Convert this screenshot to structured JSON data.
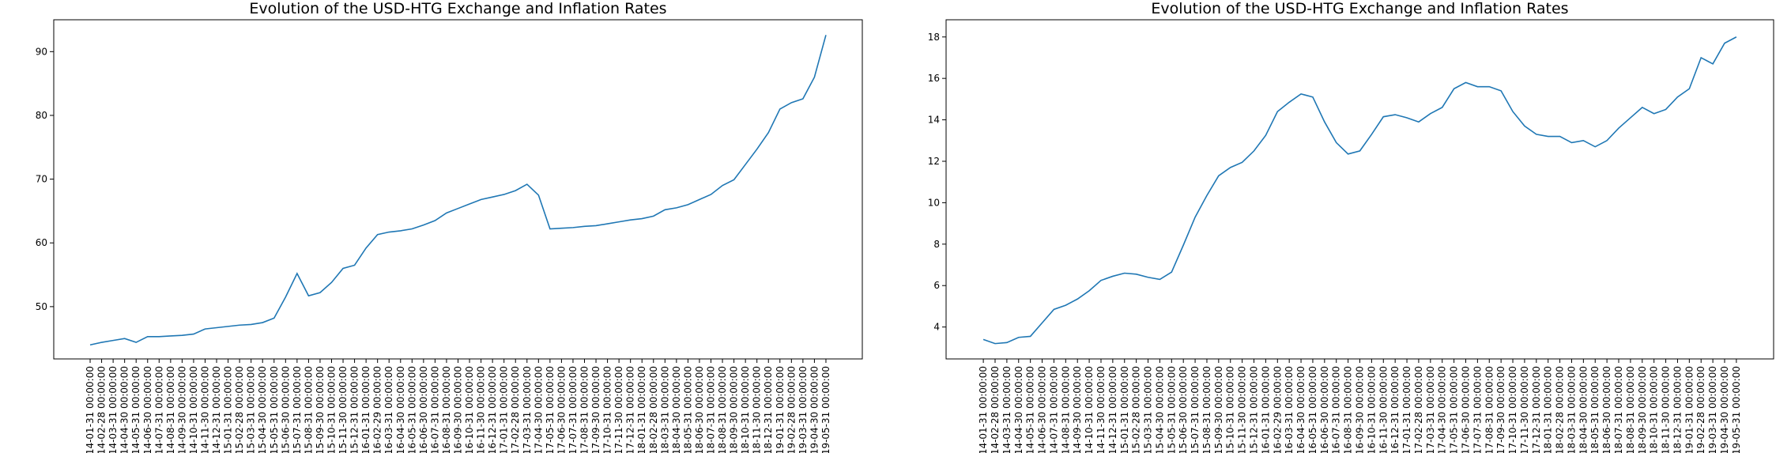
{
  "chart_data": [
    {
      "type": "line",
      "title": "Evolution of the USD-HTG Exchange and Inflation Rates",
      "categories": [
        "2014-01-31 00:00:00",
        "2014-02-28 00:00:00",
        "2014-03-31 00:00:00",
        "2014-04-30 00:00:00",
        "2014-05-31 00:00:00",
        "2014-06-30 00:00:00",
        "2014-07-31 00:00:00",
        "2014-08-31 00:00:00",
        "2014-09-30 00:00:00",
        "2014-10-31 00:00:00",
        "2014-11-30 00:00:00",
        "2014-12-31 00:00:00",
        "2015-01-31 00:00:00",
        "2015-02-28 00:00:00",
        "2015-03-31 00:00:00",
        "2015-04-30 00:00:00",
        "2015-05-31 00:00:00",
        "2015-06-30 00:00:00",
        "2015-07-31 00:00:00",
        "2015-08-31 00:00:00",
        "2015-09-30 00:00:00",
        "2015-10-31 00:00:00",
        "2015-11-30 00:00:00",
        "2015-12-31 00:00:00",
        "2016-01-31 00:00:00",
        "2016-02-29 00:00:00",
        "2016-03-31 00:00:00",
        "2016-04-30 00:00:00",
        "2016-05-31 00:00:00",
        "2016-06-30 00:00:00",
        "2016-07-31 00:00:00",
        "2016-08-31 00:00:00",
        "2016-09-30 00:00:00",
        "2016-10-31 00:00:00",
        "2016-11-30 00:00:00",
        "2016-12-31 00:00:00",
        "2017-01-31 00:00:00",
        "2017-02-28 00:00:00",
        "2017-03-31 00:00:00",
        "2017-04-30 00:00:00",
        "2017-05-31 00:00:00",
        "2017-06-30 00:00:00",
        "2017-07-31 00:00:00",
        "2017-08-31 00:00:00",
        "2017-09-30 00:00:00",
        "2017-10-31 00:00:00",
        "2017-11-30 00:00:00",
        "2017-12-31 00:00:00",
        "2018-01-31 00:00:00",
        "2018-02-28 00:00:00",
        "2018-03-31 00:00:00",
        "2018-04-30 00:00:00",
        "2018-05-31 00:00:00",
        "2018-06-30 00:00:00",
        "2018-07-31 00:00:00",
        "2018-08-31 00:00:00",
        "2018-09-30 00:00:00",
        "2018-10-31 00:00:00",
        "2018-11-30 00:00:00",
        "2018-12-31 00:00:00",
        "2019-01-31 00:00:00",
        "2019-02-28 00:00:00",
        "2019-03-31 00:00:00",
        "2019-04-30 00:00:00",
        "2019-05-31 00:00:00"
      ],
      "values": [
        44.0,
        44.4,
        44.7,
        45.0,
        44.4,
        45.3,
        45.3,
        45.4,
        45.5,
        45.7,
        46.5,
        46.7,
        46.9,
        47.1,
        47.2,
        47.5,
        48.2,
        51.5,
        55.2,
        51.7,
        52.2,
        53.8,
        56.0,
        56.5,
        59.2,
        61.3,
        61.7,
        61.9,
        62.2,
        62.8,
        63.5,
        64.7,
        65.4,
        66.1,
        66.8,
        67.2,
        67.6,
        68.2,
        69.2,
        67.5,
        62.2,
        62.3,
        62.4,
        62.6,
        62.7,
        63.0,
        63.3,
        63.6,
        63.8,
        64.2,
        65.2,
        65.5,
        66.0,
        66.8,
        67.6,
        69.0,
        69.9,
        72.3,
        74.7,
        77.3,
        81.0,
        82.0,
        82.6,
        86.0,
        92.6
      ],
      "color": "#1f77b4",
      "ylim": [
        41.8,
        95.0
      ],
      "yticks": [
        50,
        60,
        70,
        80,
        90
      ]
    },
    {
      "type": "line",
      "title": "Evolution of the USD-HTG Exchange and Inflation Rates",
      "categories": [
        "2014-01-31 00:00:00",
        "2014-02-28 00:00:00",
        "2014-03-31 00:00:00",
        "2014-04-30 00:00:00",
        "2014-05-31 00:00:00",
        "2014-06-30 00:00:00",
        "2014-07-31 00:00:00",
        "2014-08-31 00:00:00",
        "2014-09-30 00:00:00",
        "2014-10-31 00:00:00",
        "2014-11-30 00:00:00",
        "2014-12-31 00:00:00",
        "2015-01-31 00:00:00",
        "2015-02-28 00:00:00",
        "2015-03-31 00:00:00",
        "2015-04-30 00:00:00",
        "2015-05-31 00:00:00",
        "2015-06-30 00:00:00",
        "2015-07-31 00:00:00",
        "2015-08-31 00:00:00",
        "2015-09-30 00:00:00",
        "2015-10-31 00:00:00",
        "2015-11-30 00:00:00",
        "2015-12-31 00:00:00",
        "2016-01-31 00:00:00",
        "2016-02-29 00:00:00",
        "2016-03-31 00:00:00",
        "2016-04-30 00:00:00",
        "2016-05-31 00:00:00",
        "2016-06-30 00:00:00",
        "2016-07-31 00:00:00",
        "2016-08-31 00:00:00",
        "2016-09-30 00:00:00",
        "2016-10-31 00:00:00",
        "2016-11-30 00:00:00",
        "2016-12-31 00:00:00",
        "2017-01-31 00:00:00",
        "2017-02-28 00:00:00",
        "2017-03-31 00:00:00",
        "2017-04-30 00:00:00",
        "2017-05-31 00:00:00",
        "2017-06-30 00:00:00",
        "2017-07-31 00:00:00",
        "2017-08-31 00:00:00",
        "2017-09-30 00:00:00",
        "2017-10-31 00:00:00",
        "2017-11-30 00:00:00",
        "2017-12-31 00:00:00",
        "2018-01-31 00:00:00",
        "2018-02-28 00:00:00",
        "2018-03-31 00:00:00",
        "2018-04-30 00:00:00",
        "2018-05-31 00:00:00",
        "2018-06-30 00:00:00",
        "2018-07-31 00:00:00",
        "2018-08-31 00:00:00",
        "2018-09-30 00:00:00",
        "2018-10-31 00:00:00",
        "2018-11-30 00:00:00",
        "2018-12-31 00:00:00",
        "2019-01-31 00:00:00",
        "2019-02-28 00:00:00",
        "2019-03-31 00:00:00",
        "2019-04-30 00:00:00",
        "2019-05-31 00:00:00"
      ],
      "values": [
        3.4,
        3.2,
        3.25,
        3.5,
        3.55,
        4.2,
        4.85,
        5.05,
        5.35,
        5.75,
        6.25,
        6.45,
        6.6,
        6.55,
        6.4,
        6.3,
        6.65,
        7.95,
        9.3,
        10.35,
        11.3,
        11.7,
        11.95,
        12.5,
        13.25,
        14.4,
        14.85,
        15.25,
        15.1,
        13.9,
        12.9,
        12.35,
        12.5,
        13.3,
        14.15,
        14.25,
        14.1,
        13.9,
        14.3,
        14.6,
        15.5,
        15.8,
        15.6,
        15.6,
        15.4,
        14.4,
        13.7,
        13.3,
        13.2,
        13.2,
        12.9,
        13.0,
        12.7,
        13.0,
        13.6,
        14.1,
        14.6,
        14.3,
        14.5,
        15.1,
        15.5,
        17.0,
        16.7,
        17.7,
        18.0
      ],
      "color": "#1f77b4",
      "ylim": [
        2.46,
        18.83
      ],
      "yticks": [
        4,
        6,
        8,
        10,
        12,
        14,
        16,
        18
      ]
    }
  ]
}
